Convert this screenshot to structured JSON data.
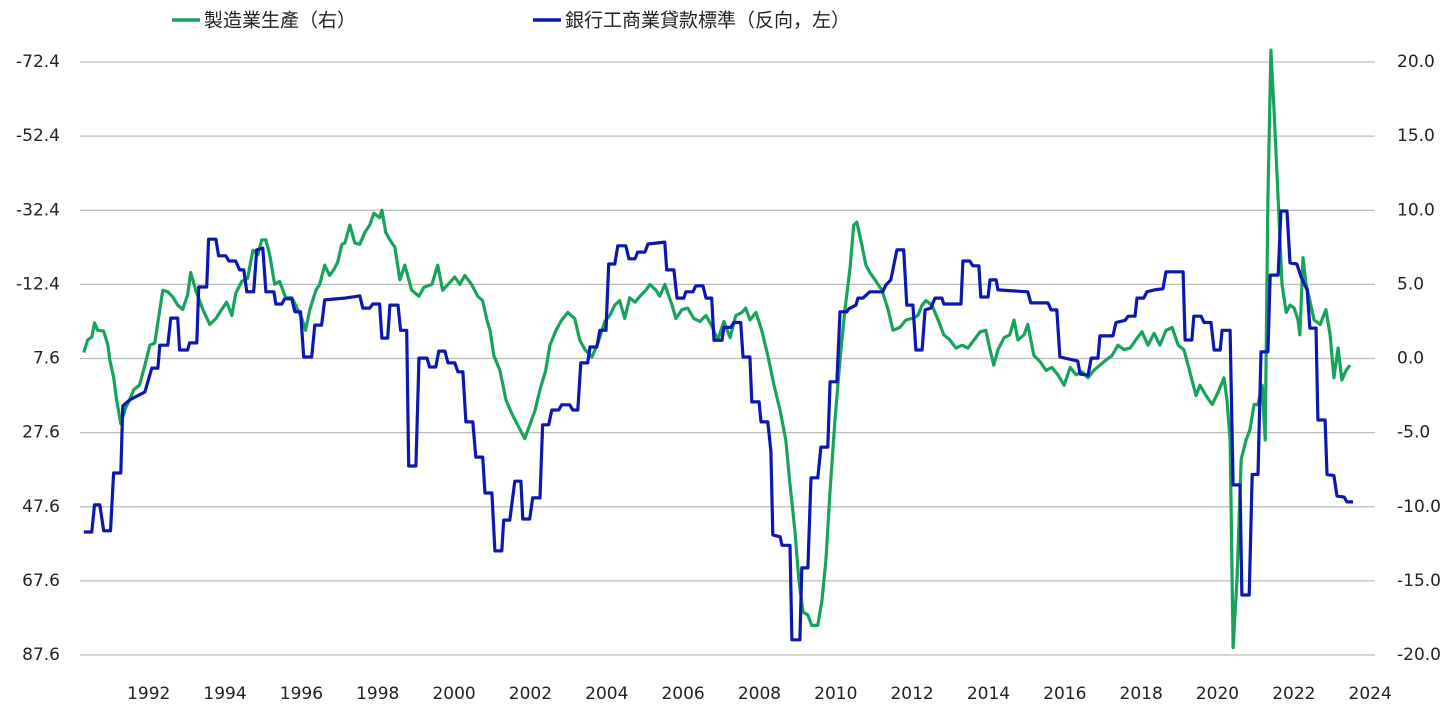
{
  "chart_data": {
    "type": "line",
    "xlim": [
      1990.2,
      2024.1
    ],
    "xticks": [
      1992,
      1994,
      1996,
      1998,
      2000,
      2002,
      2004,
      2006,
      2008,
      2010,
      2012,
      2014,
      2016,
      2018,
      2020,
      2022,
      2024
    ],
    "ylim": [
      87.6,
      -72.4
    ],
    "yticks": [
      -72.4,
      -52.4,
      -32.4,
      -12.4,
      7.6,
      27.6,
      47.6,
      67.6,
      87.6
    ],
    "y2lim": [
      -20,
      20
    ],
    "y2ticks": [
      {
        "value": 20,
        "label": "20.0"
      },
      {
        "value": 15,
        "label": "15.0"
      },
      {
        "value": 10,
        "label": "10.0"
      },
      {
        "value": 5,
        "label": "5.0"
      },
      {
        "value": 0,
        "label": "0.0"
      },
      {
        "value": -5,
        "label": "-5.0"
      },
      {
        "value": -10,
        "label": "-10.0"
      },
      {
        "value": -15,
        "label": "-15.0"
      },
      {
        "value": -20,
        "label": "-20.0"
      }
    ],
    "grid": true,
    "legend": "top",
    "series": [
      {
        "name": "製造業生產（右）",
        "color": "#17a35b",
        "axis": "y2",
        "x": [
          1990.3,
          1990.4,
          1990.51,
          1990.58,
          1990.66,
          1990.82,
          1990.93,
          1990.98,
          1991.08,
          1991.16,
          1991.27,
          1991.4,
          1991.5,
          1991.61,
          1991.76,
          1991.9,
          1992.03,
          1992.16,
          1992.29,
          1992.37,
          1992.5,
          1992.63,
          1992.76,
          1992.89,
          1993.02,
          1993.1,
          1993.23,
          1993.42,
          1993.6,
          1993.76,
          1993.91,
          1994.04,
          1994.18,
          1994.28,
          1994.44,
          1994.59,
          1994.73,
          1994.86,
          1994.96,
          1995.07,
          1995.17,
          1995.3,
          1995.43,
          1995.59,
          1995.75,
          1995.85,
          1996.01,
          1996.11,
          1996.22,
          1996.38,
          1996.48,
          1996.61,
          1996.74,
          1996.85,
          1996.95,
          1997.06,
          1997.14,
          1997.27,
          1997.4,
          1997.53,
          1997.66,
          1997.79,
          1997.9,
          1998.05,
          1998.11,
          1998.21,
          1998.32,
          1998.45,
          1998.58,
          1998.71,
          1998.89,
          1999.08,
          1999.21,
          1999.42,
          1999.57,
          1999.7,
          1999.84,
          2000.02,
          2000.15,
          2000.28,
          2000.46,
          2000.62,
          2000.75,
          2000.86,
          2000.94,
          2001.04,
          2001.2,
          2001.36,
          2001.51,
          2001.67,
          2001.85,
          2001.98,
          2002.12,
          2002.25,
          2002.4,
          2002.51,
          2002.67,
          2002.82,
          2002.98,
          2003.16,
          2003.29,
          2003.43,
          2003.61,
          2003.77,
          2003.95,
          2004.08,
          2004.21,
          2004.34,
          2004.47,
          2004.6,
          2004.74,
          2004.87,
          2005.02,
          2005.13,
          2005.29,
          2005.39,
          2005.52,
          2005.71,
          2005.81,
          2005.97,
          2006.12,
          2006.28,
          2006.44,
          2006.6,
          2006.75,
          2006.91,
          2007.07,
          2007.23,
          2007.38,
          2007.54,
          2007.64,
          2007.75,
          2007.91,
          2008.06,
          2008.22,
          2008.38,
          2008.54,
          2008.69,
          2008.8,
          2008.93,
          2009.03,
          2009.14,
          2009.27,
          2009.37,
          2009.53,
          2009.64,
          2009.74,
          2009.85,
          2009.98,
          2010.11,
          2010.24,
          2010.37,
          2010.47,
          2010.55,
          2010.68,
          2010.79,
          2010.89,
          2011.03,
          2011.21,
          2011.37,
          2011.5,
          2011.68,
          2011.84,
          2011.99,
          2012.15,
          2012.26,
          2012.36,
          2012.52,
          2012.68,
          2012.83,
          2012.99,
          2013.15,
          2013.31,
          2013.46,
          2013.62,
          2013.78,
          2013.93,
          2014.04,
          2014.14,
          2014.25,
          2014.41,
          2014.56,
          2014.67,
          2014.77,
          2014.93,
          2015.03,
          2015.19,
          2015.35,
          2015.51,
          2015.66,
          2015.82,
          2015.98,
          2016.14,
          2016.29,
          2016.45,
          2016.61,
          2016.76,
          2016.92,
          2017.08,
          2017.24,
          2017.39,
          2017.55,
          2017.71,
          2017.86,
          2018.02,
          2018.18,
          2018.34,
          2018.49,
          2018.65,
          2018.81,
          2018.97,
          2019.12,
          2019.23,
          2019.33,
          2019.44,
          2019.54,
          2019.7,
          2019.86,
          2020.01,
          2020.17,
          2020.25,
          2020.33,
          2020.41,
          2020.51,
          2020.62,
          2020.75,
          2020.85,
          2020.96,
          2021.06,
          2021.17,
          2021.25,
          2021.32,
          2021.4,
          2021.48,
          2021.59,
          2021.69,
          2021.8,
          2021.9,
          2022.01,
          2022.11,
          2022.16,
          2022.24,
          2022.32,
          2022.42,
          2022.53,
          2022.69,
          2022.84,
          2022.95,
          2023.05,
          2023.16,
          2023.26,
          2023.37,
          2023.47
        ],
        "values": [
          0.4,
          1.25,
          1.45,
          2.4,
          1.9,
          1.85,
          0.9,
          -0.1,
          -1.25,
          -2.8,
          -4.4,
          -3.3,
          -2.8,
          -2.1,
          -1.8,
          -0.45,
          0.9,
          1.05,
          3.3,
          4.6,
          4.5,
          4.15,
          3.6,
          3.3,
          4.3,
          5.8,
          4.6,
          3.3,
          2.3,
          2.7,
          3.3,
          3.8,
          2.9,
          4.4,
          5.2,
          5.4,
          7.3,
          7.0,
          8.0,
          8.0,
          7.0,
          5.0,
          5.2,
          4.1,
          4.1,
          3.6,
          2.7,
          1.9,
          3.3,
          4.6,
          5.0,
          6.3,
          5.6,
          6.0,
          6.5,
          7.7,
          7.8,
          9.0,
          7.8,
          7.7,
          8.5,
          9.0,
          9.8,
          9.5,
          10.0,
          8.5,
          8.0,
          7.5,
          5.3,
          6.3,
          4.6,
          4.2,
          4.8,
          5.0,
          6.3,
          4.6,
          5.0,
          5.5,
          5.0,
          5.6,
          5.0,
          4.2,
          3.9,
          2.6,
          1.9,
          0.2,
          -0.8,
          -2.8,
          -3.7,
          -4.5,
          -5.4,
          -4.5,
          -3.5,
          -2.1,
          -0.8,
          0.9,
          1.9,
          2.6,
          3.1,
          2.7,
          1.25,
          0.6,
          0.1,
          1.05,
          2.5,
          2.9,
          3.6,
          3.9,
          2.7,
          4.1,
          3.8,
          4.2,
          4.6,
          5.0,
          4.6,
          4.2,
          5.0,
          3.6,
          2.7,
          3.3,
          3.4,
          2.7,
          2.5,
          2.9,
          2.2,
          1.25,
          2.5,
          1.4,
          2.9,
          3.1,
          3.4,
          2.6,
          3.1,
          1.9,
          0.2,
          -1.8,
          -3.5,
          -5.5,
          -8.5,
          -11.6,
          -14.9,
          -17.1,
          -17.3,
          -18.0,
          -18.0,
          -16.3,
          -13.6,
          -8.9,
          -4.1,
          -0.1,
          3.3,
          6.0,
          9.0,
          9.2,
          7.7,
          6.3,
          5.8,
          5.3,
          4.6,
          3.3,
          1.9,
          2.1,
          2.6,
          2.7,
          2.9,
          3.6,
          3.9,
          3.6,
          2.6,
          1.6,
          1.25,
          0.7,
          0.9,
          0.7,
          1.25,
          1.8,
          1.9,
          0.6,
          -0.45,
          0.6,
          1.4,
          1.6,
          2.6,
          1.25,
          1.6,
          2.3,
          0.2,
          -0.2,
          -0.8,
          -0.6,
          -1.1,
          -1.8,
          -0.6,
          -1.1,
          -0.9,
          -1.3,
          -0.8,
          -0.45,
          -0.1,
          0.2,
          0.9,
          0.6,
          0.7,
          1.25,
          1.8,
          0.9,
          1.7,
          0.9,
          1.9,
          2.1,
          0.9,
          0.6,
          -0.45,
          -1.45,
          -2.5,
          -1.8,
          -2.5,
          -3.1,
          -2.3,
          -1.3,
          -2.8,
          -5.5,
          -19.5,
          -14.9,
          -6.8,
          -5.5,
          -4.8,
          -3.1,
          -3.1,
          -1.8,
          -5.5,
          10.7,
          20.8,
          16.8,
          10.7,
          5.0,
          3.1,
          3.6,
          3.4,
          2.6,
          1.6,
          6.8,
          5.0,
          3.9,
          2.6,
          2.3,
          3.3,
          1.6,
          -1.3,
          0.7,
          -1.45,
          -0.8,
          -0.45
        ]
      },
      {
        "name": "銀行工商業貸款標準（反向，左）",
        "color": "#0c17b0",
        "x": [
          1990.3,
          1990.51,
          1990.58,
          1990.72,
          1990.82,
          1991.0,
          1991.08,
          1991.27,
          1991.32,
          1991.5,
          1991.9,
          1992.08,
          1992.24,
          1992.29,
          1992.5,
          1992.58,
          1992.76,
          1992.81,
          1993.02,
          1993.07,
          1993.26,
          1993.31,
          1993.52,
          1993.57,
          1993.76,
          1993.83,
          1994.02,
          1994.1,
          1994.28,
          1994.38,
          1994.49,
          1994.57,
          1994.75,
          1994.83,
          1994.99,
          1995.07,
          1995.28,
          1995.33,
          1995.49,
          1995.56,
          1995.75,
          1995.83,
          1995.98,
          1996.06,
          1996.27,
          1996.35,
          1996.53,
          1996.61,
          1997.14,
          1997.53,
          1997.61,
          1997.79,
          1997.87,
          1998.05,
          1998.11,
          1998.26,
          1998.32,
          1998.53,
          1998.6,
          1998.76,
          1998.81,
          1999.0,
          1999.08,
          1999.29,
          1999.36,
          1999.52,
          1999.6,
          1999.76,
          1999.84,
          2000.02,
          2000.1,
          2000.23,
          2000.31,
          2000.49,
          2000.57,
          2000.75,
          2000.81,
          2000.99,
          2001.07,
          2001.25,
          2001.3,
          2001.46,
          2001.59,
          2001.75,
          2001.8,
          2001.98,
          2002.06,
          2002.25,
          2002.32,
          2002.48,
          2002.56,
          2002.74,
          2002.82,
          2003.03,
          2003.11,
          2003.24,
          2003.32,
          2003.5,
          2003.56,
          2003.74,
          2003.82,
          2003.98,
          2004.05,
          2004.21,
          2004.29,
          2004.5,
          2004.58,
          2004.74,
          2004.81,
          2005.0,
          2005.08,
          2005.52,
          2005.57,
          2005.76,
          2005.84,
          2006.02,
          2006.07,
          2006.26,
          2006.33,
          2006.52,
          2006.6,
          2006.75,
          2006.81,
          2007.02,
          2007.07,
          2007.25,
          2007.33,
          2007.51,
          2007.57,
          2007.75,
          2007.8,
          2007.99,
          2008.04,
          2008.22,
          2008.3,
          2008.35,
          2008.54,
          2008.59,
          2008.8,
          2008.85,
          2009.06,
          2009.11,
          2009.27,
          2009.35,
          2009.53,
          2009.61,
          2009.79,
          2009.85,
          2010.03,
          2010.11,
          2010.29,
          2010.34,
          2010.53,
          2010.58,
          2010.71,
          2010.89,
          2011.23,
          2011.31,
          2011.44,
          2011.6,
          2011.78,
          2011.86,
          2012.02,
          2012.1,
          2012.26,
          2012.34,
          2012.49,
          2012.6,
          2012.78,
          2012.83,
          2013.28,
          2013.33,
          2013.51,
          2013.59,
          2013.75,
          2013.8,
          2013.99,
          2014.04,
          2014.2,
          2014.25,
          2015.03,
          2015.11,
          2015.56,
          2015.64,
          2015.79,
          2015.87,
          2016.34,
          2016.4,
          2016.61,
          2016.69,
          2016.87,
          2016.92,
          2017.26,
          2017.34,
          2017.58,
          2017.66,
          2017.84,
          2017.89,
          2018.07,
          2018.15,
          2018.39,
          2018.57,
          2018.65,
          2019.1,
          2019.15,
          2019.33,
          2019.38,
          2019.57,
          2019.65,
          2019.83,
          2019.91,
          2020.07,
          2020.12,
          2020.33,
          2020.41,
          2020.59,
          2020.64,
          2020.83,
          2020.91,
          2021.06,
          2021.14,
          2021.32,
          2021.38,
          2021.59,
          2021.66,
          2021.82,
          2021.9,
          2022.08,
          2022.19,
          2022.35,
          2022.42,
          2022.58,
          2022.63,
          2022.82,
          2022.87,
          2023.05,
          2023.13,
          2023.32,
          2023.39,
          2023.55
        ],
        "values": [
          54.4,
          54.4,
          47.1,
          47.1,
          54.1,
          54.1,
          38.5,
          38.5,
          20.4,
          18.8,
          16.6,
          10.2,
          10.2,
          4.0,
          4.0,
          -3.3,
          -3.3,
          5.3,
          5.3,
          3.4,
          3.4,
          -11.7,
          -11.7,
          -24.6,
          -24.6,
          -20.1,
          -20.1,
          -18.7,
          -18.7,
          -16.3,
          -16.3,
          -10.4,
          -10.4,
          -21.7,
          -22.2,
          -10.4,
          -10.4,
          -7.1,
          -7.1,
          -8.5,
          -8.5,
          -5.0,
          -5.0,
          7.2,
          7.2,
          -1.4,
          -1.4,
          -8.2,
          -8.7,
          -9.3,
          -6.0,
          -6.0,
          -7.1,
          -7.1,
          2.1,
          2.1,
          -6.8,
          -6.8,
          0.0,
          0.0,
          36.6,
          36.6,
          7.5,
          7.5,
          9.9,
          9.9,
          5.6,
          5.6,
          8.8,
          8.8,
          11.2,
          11.2,
          24.7,
          24.7,
          34.2,
          34.2,
          43.9,
          43.9,
          59.5,
          59.5,
          51.2,
          51.2,
          40.7,
          40.7,
          50.9,
          50.9,
          45.2,
          45.2,
          25.5,
          25.5,
          21.5,
          21.5,
          20.1,
          20.1,
          21.5,
          21.5,
          8.8,
          8.8,
          4.5,
          4.5,
          0.0,
          0.0,
          -17.9,
          -17.9,
          -22.8,
          -22.8,
          -19.3,
          -19.3,
          -21.1,
          -21.1,
          -23.3,
          -23.8,
          -16.3,
          -16.3,
          -8.7,
          -8.7,
          -10.4,
          -10.4,
          -12.0,
          -12.0,
          -8.7,
          -8.7,
          2.7,
          2.7,
          -0.8,
          -0.8,
          -2.1,
          -2.1,
          7.2,
          7.2,
          19.3,
          19.3,
          24.7,
          24.7,
          32.6,
          55.2,
          55.7,
          58.0,
          58.0,
          83.5,
          83.5,
          64.1,
          64.1,
          39.8,
          39.8,
          31.5,
          31.5,
          13.9,
          13.9,
          -5.0,
          -5.0,
          -5.8,
          -6.8,
          -8.7,
          -8.7,
          -10.4,
          -10.4,
          -12.2,
          -13.6,
          -21.7,
          -21.7,
          -6.8,
          -6.8,
          5.3,
          5.3,
          -5.5,
          -6.0,
          -8.7,
          -8.7,
          -7.1,
          -7.1,
          -18.7,
          -18.7,
          -17.4,
          -17.4,
          -9.0,
          -9.0,
          -13.6,
          -13.6,
          -10.9,
          -10.4,
          -7.4,
          -7.4,
          -5.5,
          -5.5,
          7.2,
          8.3,
          11.8,
          12.1,
          7.5,
          7.5,
          1.5,
          1.5,
          -2.1,
          -2.7,
          -3.8,
          -3.8,
          -8.7,
          -8.7,
          -10.4,
          -11.0,
          -11.2,
          -15.8,
          -15.8,
          2.6,
          2.6,
          -3.8,
          -3.8,
          -2.1,
          -2.1,
          5.3,
          5.3,
          0.0,
          0.0,
          41.7,
          41.7,
          71.4,
          71.4,
          38.9,
          38.9,
          5.8,
          5.8,
          -14.9,
          -14.9,
          -32.2,
          -32.2,
          -18.2,
          -17.9,
          -14.4,
          -10.9,
          -0.6,
          -0.6,
          24.2,
          24.2,
          38.9,
          39.2,
          44.7,
          45.0,
          46.3,
          46.3
        ]
      }
    ]
  }
}
